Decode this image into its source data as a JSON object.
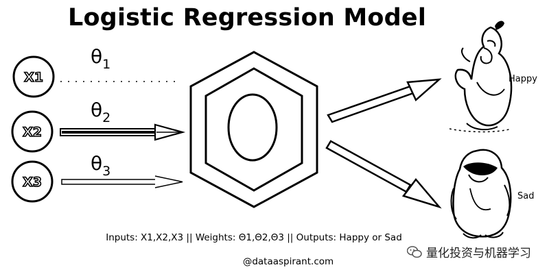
{
  "title": "Logistic Regression Model",
  "inputs": [
    {
      "label": "X1"
    },
    {
      "label": "X2"
    },
    {
      "label": "X3"
    }
  ],
  "weights": [
    {
      "symbol": "θ",
      "sub": "1"
    },
    {
      "symbol": "θ",
      "sub": "2"
    },
    {
      "symbol": "θ",
      "sub": "3"
    }
  ],
  "outputs": [
    {
      "label": "Happy",
      "icon": "happy-penguin-icon"
    },
    {
      "label": "Sad",
      "icon": "sad-penguin-icon"
    }
  ],
  "caption": "Inputs: X1,X2,X3 || Weights: Θ1,Θ2,Θ3 || Outputs: Happy or Sad",
  "credit": "@dataaspirant.com",
  "watermark": {
    "text": "量化投资与机器学习",
    "icon": "wechat-icon"
  }
}
